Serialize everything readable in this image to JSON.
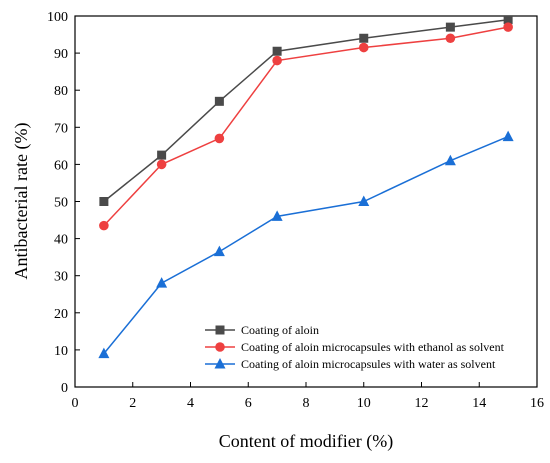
{
  "chart_data": {
    "type": "line",
    "xlabel": "Content of modifier (%)",
    "ylabel": "Antibacterial rate (%)",
    "xlim": [
      0,
      16
    ],
    "ylim": [
      0,
      100
    ],
    "xticks": [
      0,
      2,
      4,
      6,
      8,
      10,
      12,
      14,
      16
    ],
    "yticks": [
      0,
      10,
      20,
      30,
      40,
      50,
      60,
      70,
      80,
      90,
      100
    ],
    "grid": false,
    "legend_position": "bottom-right",
    "x": [
      1,
      3,
      5,
      7,
      10,
      13,
      15
    ],
    "series": [
      {
        "name": "Coating of aloin",
        "marker": "square",
        "color": "#4a4a4a",
        "values": [
          50,
          62.5,
          77,
          90.5,
          94,
          97,
          99
        ]
      },
      {
        "name": "Coating of aloin microcapsules with ethanol as solvent",
        "marker": "circle",
        "color": "#ee4040",
        "values": [
          43.5,
          60,
          67,
          88,
          91.5,
          94,
          97
        ]
      },
      {
        "name": "Coating of aloin microcapsules with water as solvent",
        "marker": "triangle",
        "color": "#1a6fd6",
        "values": [
          9,
          28,
          36.5,
          46,
          50,
          61,
          67.5
        ]
      }
    ]
  }
}
